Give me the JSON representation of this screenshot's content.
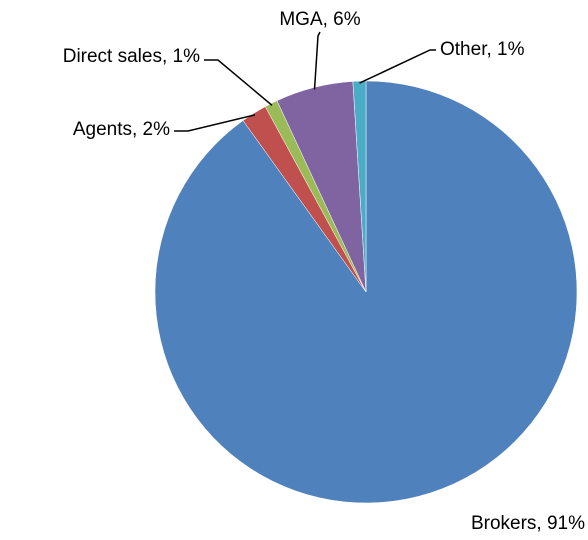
{
  "chart_data": {
    "type": "pie",
    "values": [
      91,
      2,
      1,
      6,
      1
    ],
    "value_labels": [
      "Brokers, 91%",
      "Agents, 2%",
      "Direct sales, 1%",
      "MGA, 6%",
      "Other, 1%"
    ],
    "colors": [
      "#4f81bd",
      "#c0504d",
      "#9bbb59",
      "#8064a2",
      "#4bacc6"
    ]
  }
}
